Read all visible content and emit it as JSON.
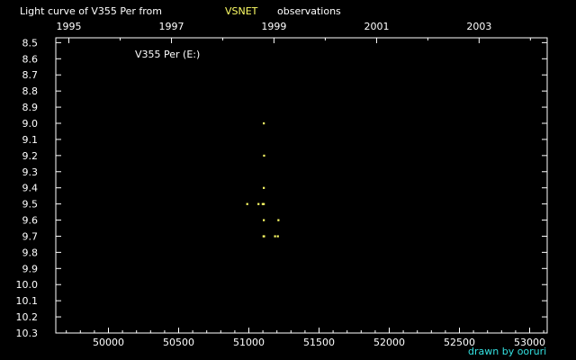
{
  "header": {
    "title_prefix": "Light curve of V355 Per from",
    "title_source": "VSNET",
    "title_suffix": "observations"
  },
  "credit": "drawn by ooruri",
  "colors": {
    "background": "#000000",
    "axes": "#ffffff",
    "points": "#ffff66",
    "credit": "#33e0e0",
    "source": "#ffff66"
  },
  "chart_data": {
    "type": "scatter",
    "legend_label": "V355 Per (E:)",
    "x_axis_label": "",
    "y_axis_label": "",
    "x_bottom_ticks": [
      {
        "value": 50000,
        "label": "50000"
      },
      {
        "value": 50500,
        "label": "50500"
      },
      {
        "value": 51000,
        "label": "51000"
      },
      {
        "value": 51500,
        "label": "51500"
      },
      {
        "value": 52000,
        "label": "52000"
      },
      {
        "value": 52500,
        "label": "52500"
      },
      {
        "value": 53000,
        "label": "53000"
      }
    ],
    "x_top_ticks": [
      {
        "value": 49718,
        "label": "1995"
      },
      {
        "value": 50449,
        "label": "1997"
      },
      {
        "value": 51179,
        "label": "1999"
      },
      {
        "value": 51910,
        "label": "2001"
      },
      {
        "value": 52640,
        "label": "2003"
      }
    ],
    "y_ticks": [
      "8.5",
      "8.6",
      "8.7",
      "8.8",
      "8.9",
      "9.0",
      "9.1",
      "9.2",
      "9.3",
      "9.4",
      "9.5",
      "9.6",
      "9.7",
      "9.8",
      "9.9",
      "10.0",
      "10.1",
      "10.2",
      "10.3"
    ],
    "xlim": [
      49625,
      53125
    ],
    "ylim": [
      8.47,
      10.3
    ],
    "y_inverted": true,
    "points": [
      {
        "x": 51106,
        "y": 9.0
      },
      {
        "x": 51108,
        "y": 9.2
      },
      {
        "x": 51106,
        "y": 9.4
      },
      {
        "x": 50988,
        "y": 9.5
      },
      {
        "x": 51068,
        "y": 9.5
      },
      {
        "x": 51098,
        "y": 9.5
      },
      {
        "x": 51106,
        "y": 9.5
      },
      {
        "x": 51106,
        "y": 9.6
      },
      {
        "x": 51210,
        "y": 9.6
      },
      {
        "x": 51104,
        "y": 9.7
      },
      {
        "x": 51108,
        "y": 9.7
      },
      {
        "x": 51186,
        "y": 9.7
      },
      {
        "x": 51206,
        "y": 9.7
      }
    ]
  }
}
